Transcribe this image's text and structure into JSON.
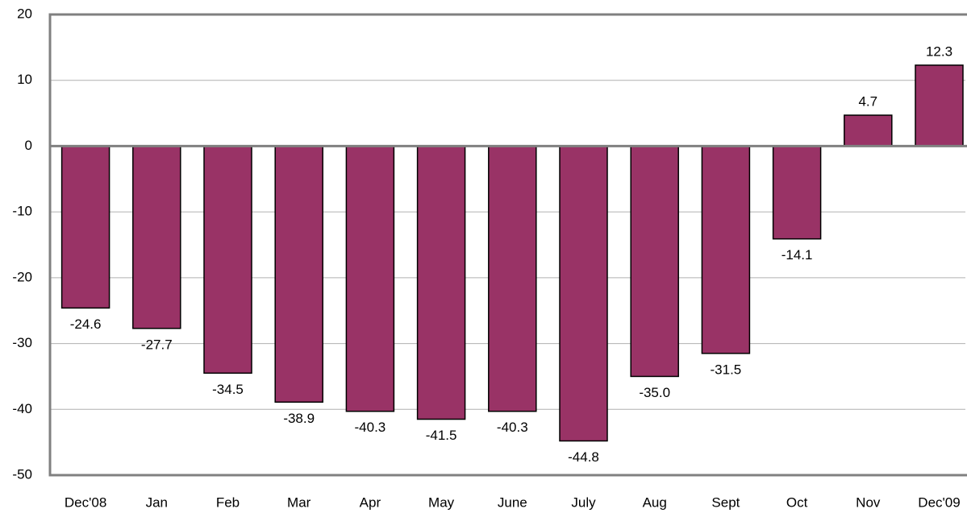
{
  "chart_data": {
    "type": "bar",
    "categories": [
      "Dec'08",
      "Jan",
      "Feb",
      "Mar",
      "Apr",
      "May",
      "June",
      "July",
      "Aug",
      "Sept",
      "Oct",
      "Nov",
      "Dec'09"
    ],
    "values": [
      -24.6,
      -27.7,
      -34.5,
      -38.9,
      -40.3,
      -41.5,
      -40.3,
      -44.8,
      -35.0,
      -31.5,
      -14.1,
      4.7,
      12.3
    ],
    "value_labels": [
      "-24.6",
      "-27.7",
      "-34.5",
      "-38.9",
      "-40.3",
      "-41.5",
      "-40.3",
      "-44.8",
      "-35.0",
      "-31.5",
      "-14.1",
      "4.7",
      "12.3"
    ],
    "color": "#993366",
    "ylim": [
      -50,
      20
    ],
    "yticks": [
      -50,
      -40,
      -30,
      -20,
      -10,
      0,
      10,
      20
    ],
    "grid": true
  }
}
